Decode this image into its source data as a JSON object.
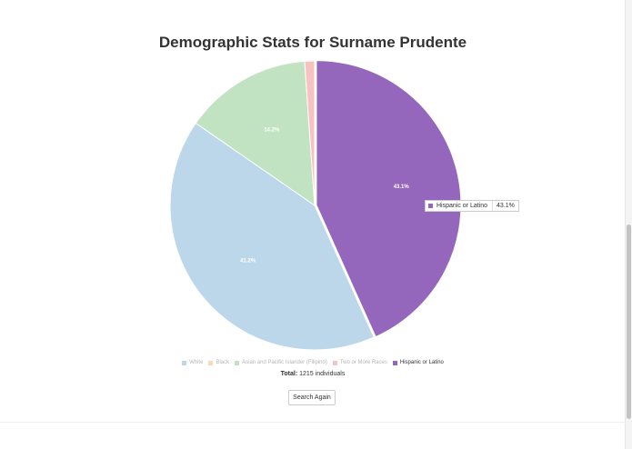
{
  "page": {
    "title": "Demographic Stats for Surname Prudente",
    "total_label": "Total:",
    "total_value": "1215 individuals",
    "search_again_label": "Search Again"
  },
  "chart_data": {
    "type": "pie",
    "title": "Demographic Stats for Surname Prudente",
    "slices": [
      {
        "name": "Hispanic or Latino",
        "value": 43.1,
        "label": "43.1%",
        "color": "#9467bd",
        "visible": true
      },
      {
        "name": "White",
        "value": 41.2,
        "label": "41.2%",
        "color": "#bcd7ea",
        "visible": true
      },
      {
        "name": "Asian and Pacific Islander (Filipino)",
        "value": 14.2,
        "label": "14.2%",
        "color": "#c1e3c1",
        "visible": true
      },
      {
        "name": "Two or More Races",
        "value": 1.1,
        "label": "",
        "color": "#f9c2c2",
        "visible": true
      },
      {
        "name": "Black",
        "value": 0.4,
        "label": "",
        "color": "#fcd9b6",
        "visible": false
      }
    ],
    "legend": [
      {
        "name": "White",
        "color": "#bcd7ea",
        "active": false
      },
      {
        "name": "Black",
        "color": "#fcd9b6",
        "active": false
      },
      {
        "name": "Asian and Pacific Islander (Filipino)",
        "color": "#c1e3c1",
        "active": false
      },
      {
        "name": "Two or More Races",
        "color": "#f9c2c2",
        "active": false
      },
      {
        "name": "Hispanic or Latino",
        "color": "#9467bd",
        "active": true
      }
    ],
    "legend_position": "bottom",
    "tooltip": {
      "name": "Hispanic or Latino",
      "value": "43.1%",
      "color": "#9467bd"
    }
  }
}
